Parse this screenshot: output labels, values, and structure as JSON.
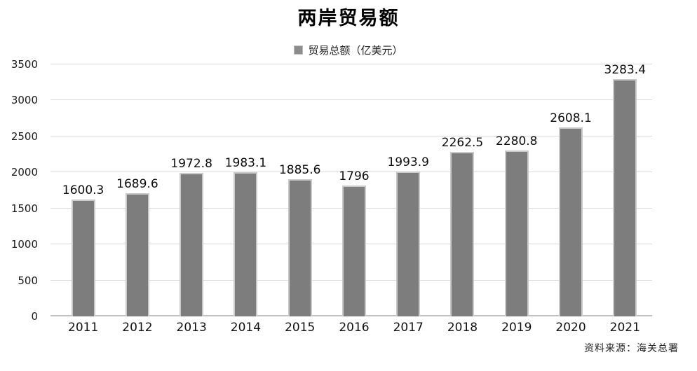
{
  "chart_data": {
    "type": "bar",
    "title": "两岸贸易额",
    "legend": "贸易总额（亿美元）",
    "legend_position": "top-center",
    "categories": [
      "2011",
      "2012",
      "2013",
      "2014",
      "2015",
      "2016",
      "2017",
      "2018",
      "2019",
      "2020",
      "2021"
    ],
    "values": [
      1600.3,
      1689.6,
      1972.8,
      1983.1,
      1885.6,
      1796,
      1993.9,
      2262.5,
      2280.8,
      2608.1,
      3283.4
    ],
    "value_labels": [
      "1600.3",
      "1689.6",
      "1972.8",
      "1983.1",
      "1885.6",
      "1796",
      "1993.9",
      "2262.5",
      "2280.8",
      "2608.1",
      "3283.4"
    ],
    "xlabel": "",
    "ylabel": "",
    "ylim": [
      0,
      3500
    ],
    "ytick_step": 500,
    "grid": true,
    "colors": {
      "bar_fill": "#7d7d7d",
      "bar_border": "#c9c9c9",
      "gridline": "#dcdcdc",
      "baseline": "#c2c2c2",
      "text": "#111111"
    }
  },
  "source": "资料来源：海关总署"
}
